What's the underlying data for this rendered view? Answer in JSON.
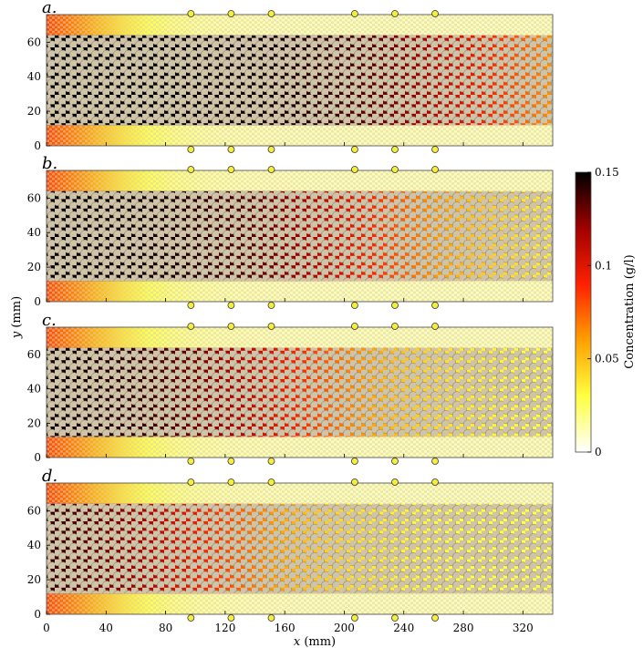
{
  "chart_data": {
    "type": "heatmap",
    "panels": [
      {
        "label": "a.",
        "front_x": 300
      },
      {
        "label": "b.",
        "front_x": 220
      },
      {
        "label": "c.",
        "front_x": 170
      },
      {
        "label": "d.",
        "front_x": 110
      }
    ],
    "xlabel": "x (mm)",
    "ylabel": "y (mm)",
    "xlim": [
      0,
      340
    ],
    "ylim": [
      0,
      76
    ],
    "xticks": [
      "0",
      "40",
      "80",
      "120",
      "160",
      "200",
      "240",
      "280",
      "320"
    ],
    "xtick_values": [
      0,
      40,
      80,
      120,
      160,
      200,
      240,
      280,
      320
    ],
    "yticks": [
      "0",
      "20",
      "40",
      "60"
    ],
    "ytick_values": [
      0,
      20,
      40,
      60
    ],
    "porous_band_y": [
      12,
      64
    ],
    "sensor_x": [
      97,
      124,
      151,
      207,
      234,
      261
    ],
    "colorbar": {
      "label": "Concentration (g/l)",
      "ticks": [
        "0",
        "0.05",
        "0.1",
        "0.15"
      ],
      "tick_values": [
        0,
        0.05,
        0.1,
        0.15
      ],
      "range": [
        0,
        0.15
      ],
      "colormap": [
        "#ffffff",
        "#ffff40",
        "#ffa000",
        "#ff2000",
        "#a00000",
        "#000000"
      ]
    }
  }
}
